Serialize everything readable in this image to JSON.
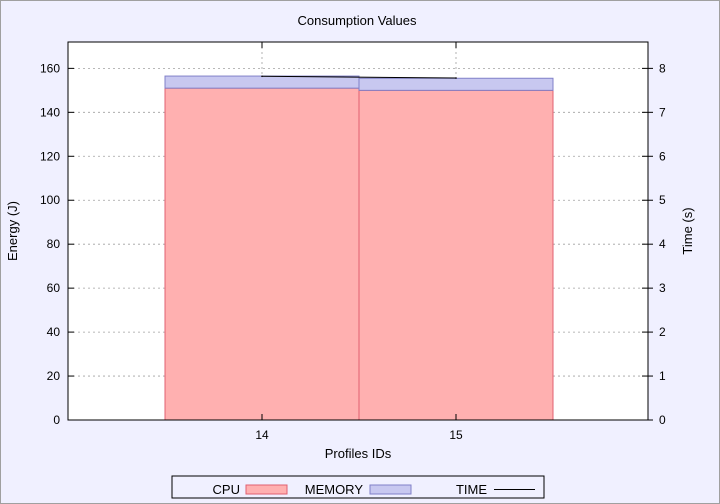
{
  "chart_data": {
    "type": "bar",
    "title": "Consumption Values",
    "xlabel": "Profiles IDs",
    "ylabel": "Energy (J)",
    "y2label": "Time (s)",
    "categories": [
      "14",
      "15"
    ],
    "stacked": true,
    "series": [
      {
        "name": "CPU",
        "values": [
          151,
          150
        ],
        "color": "#ffb0b0",
        "stroke": "#e06070",
        "axis": "y"
      },
      {
        "name": "MEMORY",
        "values": [
          5.5,
          5.5
        ],
        "color": "#c8c8f0",
        "stroke": "#8080c8",
        "axis": "y"
      },
      {
        "name": "TIME",
        "values": [
          7.82,
          7.78
        ],
        "color": "#000000",
        "type": "line",
        "axis": "y2"
      }
    ],
    "ylim": [
      0,
      172
    ],
    "y2lim": [
      0,
      8.6
    ],
    "yticks": [
      0,
      20,
      40,
      60,
      80,
      100,
      120,
      140,
      160
    ],
    "y2ticks": [
      0,
      1,
      2,
      3,
      4,
      5,
      6,
      7,
      8
    ],
    "grid": true,
    "legend_position": "bottom"
  }
}
